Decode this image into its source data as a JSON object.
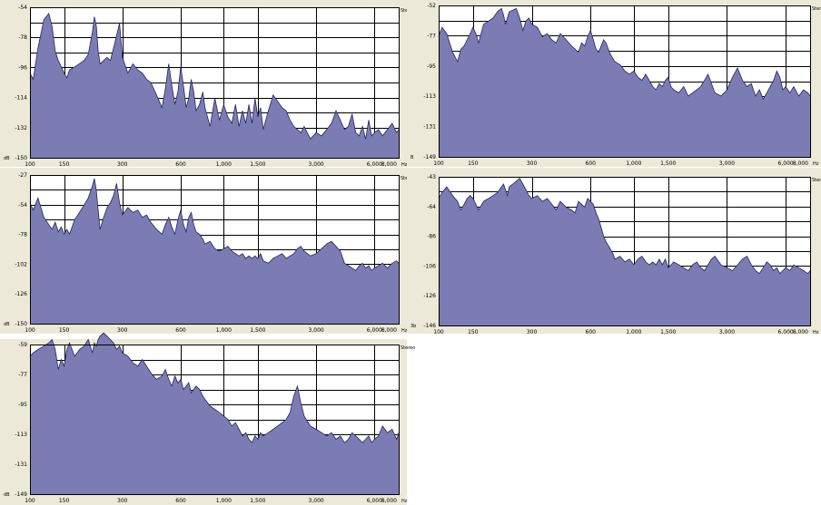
{
  "colors": {
    "fill": "#7c7cb4",
    "line": "#24245e",
    "grid": "#000000",
    "panel": "#ece9d8",
    "plot": "#ffffff"
  },
  "chart_data": [
    {
      "type": "area",
      "x_scale": "log",
      "xlim": [
        100,
        8000
      ],
      "ylim": [
        -150,
        -54
      ],
      "x_ticks": [
        "100",
        "150",
        "300",
        "600",
        "1,000",
        "1,500",
        "3,000",
        "6,000",
        "8,000"
      ],
      "x_unit": "Hz",
      "y_ticks": [
        "-54",
        "-78",
        "-96",
        "-114",
        "-132",
        "-150"
      ],
      "y_unit": "dB",
      "channel_label": "Stereo",
      "x": [
        100,
        104,
        110,
        118,
        125,
        130,
        135,
        140,
        145,
        150,
        155,
        160,
        170,
        180,
        190,
        200,
        210,
        215,
        220,
        225,
        230,
        240,
        250,
        260,
        270,
        280,
        290,
        300,
        320,
        340,
        360,
        380,
        400,
        420,
        450,
        480,
        500,
        520,
        540,
        560,
        580,
        600,
        620,
        640,
        660,
        680,
        700,
        720,
        750,
        780,
        800,
        850,
        900,
        950,
        1000,
        1050,
        1100,
        1150,
        1200,
        1250,
        1300,
        1350,
        1400,
        1450,
        1500,
        1550,
        1600,
        1700,
        1800,
        1900,
        2000,
        2100,
        2200,
        2300,
        2400,
        2500,
        2600,
        2800,
        3000,
        3200,
        3400,
        3600,
        3800,
        4000,
        4200,
        4400,
        4600,
        4800,
        5000,
        5200,
        5400,
        5600,
        5800,
        6000,
        6300,
        6600,
        7000,
        7400,
        7800,
        8000
      ],
      "y": [
        -96,
        -100,
        -80,
        -62,
        -58,
        -66,
        -82,
        -88,
        -92,
        -96,
        -99,
        -94,
        -92,
        -90,
        -88,
        -84,
        -70,
        -60,
        -66,
        -82,
        -90,
        -88,
        -86,
        -88,
        -80,
        -72,
        -64,
        -86,
        -96,
        -90,
        -94,
        -96,
        -100,
        -102,
        -110,
        -118,
        -106,
        -90,
        -104,
        -116,
        -108,
        -92,
        -104,
        -118,
        -112,
        -100,
        -108,
        -120,
        -116,
        -108,
        -118,
        -130,
        -112,
        -126,
        -116,
        -124,
        -128,
        -116,
        -130,
        -120,
        -128,
        -116,
        -128,
        -112,
        -124,
        -118,
        -132,
        -120,
        -110,
        -114,
        -118,
        -120,
        -126,
        -130,
        -132,
        -134,
        -130,
        -138,
        -134,
        -136,
        -132,
        -128,
        -120,
        -126,
        -132,
        -130,
        -122,
        -134,
        -136,
        -130,
        -138,
        -126,
        -136,
        -134,
        -132,
        -136,
        -132,
        -128,
        -134,
        -132
      ]
    },
    {
      "type": "area",
      "x_scale": "log",
      "xlim": [
        100,
        8000
      ],
      "ylim": [
        -149,
        -52
      ],
      "x_ticks": [
        "100",
        "150",
        "300",
        "600",
        "1,000",
        "1,500",
        "3,000",
        "6,000",
        "8,000"
      ],
      "x_unit": "Hz",
      "y_ticks": [
        "-52",
        "-77",
        "-95",
        "-113",
        "-131",
        "-149"
      ],
      "y_unit": "B",
      "channel_label": "Stereo",
      "x": [
        100,
        104,
        110,
        118,
        125,
        130,
        135,
        140,
        145,
        150,
        155,
        160,
        170,
        180,
        190,
        200,
        210,
        215,
        220,
        225,
        230,
        240,
        250,
        260,
        270,
        280,
        290,
        300,
        320,
        340,
        360,
        380,
        400,
        420,
        450,
        480,
        500,
        520,
        540,
        560,
        580,
        600,
        620,
        640,
        660,
        680,
        700,
        720,
        750,
        780,
        800,
        850,
        900,
        950,
        1000,
        1050,
        1100,
        1150,
        1200,
        1250,
        1300,
        1350,
        1400,
        1450,
        1500,
        1550,
        1600,
        1700,
        1800,
        1900,
        2000,
        2100,
        2200,
        2300,
        2400,
        2500,
        2600,
        2800,
        3000,
        3200,
        3400,
        3600,
        3800,
        4000,
        4200,
        4400,
        4600,
        4800,
        5000,
        5200,
        5400,
        5600,
        5800,
        6000,
        6300,
        6600,
        7000,
        7400,
        7800,
        8000
      ],
      "y": [
        -72,
        -66,
        -70,
        -82,
        -88,
        -80,
        -78,
        -74,
        -70,
        -66,
        -70,
        -76,
        -64,
        -62,
        -60,
        -56,
        -54,
        -58,
        -64,
        -60,
        -56,
        -55,
        -54,
        -60,
        -68,
        -62,
        -60,
        -64,
        -66,
        -72,
        -70,
        -74,
        -76,
        -70,
        -74,
        -78,
        -80,
        -82,
        -76,
        -78,
        -72,
        -68,
        -74,
        -80,
        -82,
        -78,
        -74,
        -76,
        -82,
        -86,
        -88,
        -90,
        -94,
        -96,
        -94,
        -98,
        -100,
        -96,
        -100,
        -104,
        -106,
        -102,
        -104,
        -100,
        -98,
        -104,
        -106,
        -108,
        -104,
        -110,
        -108,
        -106,
        -104,
        -100,
        -96,
        -102,
        -108,
        -110,
        -106,
        -98,
        -92,
        -100,
        -104,
        -102,
        -110,
        -106,
        -112,
        -108,
        -104,
        -100,
        -94,
        -98,
        -106,
        -104,
        -108,
        -104,
        -110,
        -106,
        -108,
        -110
      ]
    },
    {
      "type": "area",
      "x_scale": "log",
      "xlim": [
        100,
        8000
      ],
      "ylim": [
        -150,
        -27
      ],
      "x_ticks": [
        "100",
        "150",
        "300",
        "600",
        "1,000",
        "1,500",
        "3,000",
        "6,000",
        "8,000"
      ],
      "x_unit": "Hz",
      "y_ticks": [
        "-27",
        "-54",
        "-78",
        "-102",
        "-126",
        "-150"
      ],
      "y_unit": "dB",
      "channel_label": "Stereo",
      "x": [
        100,
        104,
        110,
        118,
        125,
        130,
        135,
        140,
        145,
        150,
        155,
        160,
        170,
        180,
        190,
        200,
        210,
        215,
        220,
        225,
        230,
        240,
        250,
        260,
        270,
        280,
        290,
        300,
        320,
        340,
        360,
        380,
        400,
        420,
        450,
        480,
        500,
        520,
        540,
        560,
        580,
        600,
        620,
        640,
        660,
        680,
        700,
        720,
        750,
        780,
        800,
        850,
        900,
        950,
        1000,
        1050,
        1100,
        1150,
        1200,
        1250,
        1300,
        1350,
        1400,
        1450,
        1500,
        1550,
        1600,
        1700,
        1800,
        1900,
        2000,
        2100,
        2200,
        2300,
        2400,
        2500,
        2600,
        2800,
        3000,
        3200,
        3400,
        3600,
        3800,
        4000,
        4200,
        4400,
        4600,
        4800,
        5000,
        5200,
        5400,
        5600,
        5800,
        6000,
        6300,
        6600,
        7000,
        7400,
        7800,
        8000
      ],
      "y": [
        -50,
        -56,
        -46,
        -62,
        -68,
        -72,
        -66,
        -74,
        -70,
        -76,
        -72,
        -76,
        -64,
        -58,
        -52,
        -46,
        -36,
        -30,
        -40,
        -56,
        -72,
        -62,
        -54,
        -50,
        -44,
        -34,
        -50,
        -60,
        -54,
        -58,
        -56,
        -62,
        -60,
        -66,
        -72,
        -76,
        -68,
        -62,
        -70,
        -76,
        -64,
        -56,
        -68,
        -74,
        -62,
        -58,
        -68,
        -74,
        -76,
        -80,
        -84,
        -82,
        -88,
        -90,
        -88,
        -86,
        -90,
        -92,
        -94,
        -92,
        -96,
        -94,
        -96,
        -94,
        -96,
        -92,
        -98,
        -100,
        -96,
        -94,
        -92,
        -96,
        -94,
        -92,
        -88,
        -86,
        -90,
        -94,
        -92,
        -88,
        -84,
        -82,
        -86,
        -90,
        -100,
        -102,
        -104,
        -106,
        -102,
        -100,
        -104,
        -102,
        -106,
        -104,
        -102,
        -100,
        -104,
        -100,
        -98,
        -100
      ]
    },
    {
      "type": "area",
      "x_scale": "log",
      "xlim": [
        100,
        8000
      ],
      "ylim": [
        -146,
        -43
      ],
      "x_ticks": [
        "100",
        "150",
        "300",
        "600",
        "1,000",
        "1,500",
        "3,000",
        "6,000",
        "8,000"
      ],
      "x_unit": "Hz",
      "y_ticks": [
        "-43",
        "-64",
        "-86",
        "-106",
        "-126",
        "-146"
      ],
      "y_unit": "3b",
      "channel_label": "Stereo",
      "x": [
        100,
        104,
        110,
        118,
        125,
        130,
        135,
        140,
        145,
        150,
        155,
        160,
        170,
        180,
        190,
        200,
        210,
        215,
        220,
        225,
        230,
        240,
        250,
        260,
        270,
        280,
        290,
        300,
        320,
        340,
        360,
        380,
        400,
        420,
        450,
        480,
        500,
        520,
        540,
        560,
        580,
        600,
        620,
        640,
        660,
        680,
        700,
        720,
        750,
        780,
        800,
        850,
        900,
        950,
        1000,
        1050,
        1100,
        1150,
        1200,
        1250,
        1300,
        1350,
        1400,
        1450,
        1500,
        1550,
        1600,
        1700,
        1800,
        1900,
        2000,
        2100,
        2200,
        2300,
        2400,
        2500,
        2600,
        2800,
        3000,
        3200,
        3400,
        3600,
        3800,
        4000,
        4200,
        4400,
        4600,
        4800,
        5000,
        5200,
        5400,
        5600,
        5800,
        6000,
        6300,
        6600,
        7000,
        7400,
        7800,
        8000
      ],
      "y": [
        -58,
        -54,
        -50,
        -56,
        -60,
        -66,
        -62,
        -58,
        -56,
        -58,
        -62,
        -66,
        -60,
        -58,
        -56,
        -54,
        -50,
        -48,
        -52,
        -56,
        -50,
        -48,
        -46,
        -44,
        -48,
        -52,
        -56,
        -58,
        -56,
        -60,
        -58,
        -62,
        -66,
        -60,
        -64,
        -66,
        -68,
        -60,
        -62,
        -64,
        -58,
        -60,
        -62,
        -68,
        -72,
        -78,
        -84,
        -88,
        -92,
        -96,
        -100,
        -98,
        -102,
        -100,
        -104,
        -100,
        -98,
        -102,
        -104,
        -102,
        -104,
        -100,
        -104,
        -100,
        -106,
        -104,
        -102,
        -104,
        -106,
        -108,
        -104,
        -102,
        -106,
        -108,
        -104,
        -100,
        -98,
        -104,
        -106,
        -108,
        -104,
        -100,
        -98,
        -104,
        -108,
        -110,
        -106,
        -102,
        -104,
        -108,
        -106,
        -110,
        -108,
        -106,
        -108,
        -104,
        -106,
        -108,
        -110,
        -108
      ]
    },
    {
      "type": "area",
      "x_scale": "log",
      "xlim": [
        100,
        8000
      ],
      "ylim": [
        -149,
        -59
      ],
      "x_ticks": [
        "100",
        "150",
        "300",
        "600",
        "1,000",
        "1,500",
        "3,000",
        "6,000",
        "8,000"
      ],
      "x_unit": "Hz",
      "y_ticks": [
        "-59",
        "-77",
        "-95",
        "-113",
        "-131",
        "-149"
      ],
      "y_unit": "dB",
      "channel_label": "Stereo",
      "x": [
        100,
        104,
        110,
        118,
        125,
        130,
        135,
        140,
        145,
        150,
        155,
        160,
        170,
        180,
        190,
        200,
        210,
        215,
        220,
        225,
        230,
        240,
        250,
        260,
        270,
        280,
        290,
        300,
        320,
        340,
        360,
        380,
        400,
        420,
        450,
        480,
        500,
        520,
        540,
        560,
        580,
        600,
        620,
        640,
        660,
        680,
        700,
        720,
        750,
        780,
        800,
        850,
        900,
        950,
        1000,
        1050,
        1100,
        1150,
        1200,
        1250,
        1300,
        1350,
        1400,
        1450,
        1500,
        1550,
        1600,
        1700,
        1800,
        1900,
        2000,
        2100,
        2200,
        2300,
        2400,
        2500,
        2600,
        2800,
        3000,
        3200,
        3400,
        3600,
        3800,
        4000,
        4200,
        4400,
        4600,
        4800,
        5000,
        5200,
        5400,
        5600,
        5800,
        6000,
        6300,
        6600,
        7000,
        7400,
        7800,
        8000
      ],
      "y": [
        -66,
        -64,
        -62,
        -60,
        -58,
        -56,
        -62,
        -74,
        -68,
        -72,
        -62,
        -58,
        -66,
        -62,
        -60,
        -56,
        -64,
        -58,
        -60,
        -56,
        -54,
        -52,
        -54,
        -56,
        -58,
        -62,
        -60,
        -64,
        -66,
        -70,
        -72,
        -68,
        -72,
        -76,
        -80,
        -78,
        -74,
        -80,
        -84,
        -78,
        -82,
        -80,
        -86,
        -84,
        -82,
        -88,
        -86,
        -84,
        -86,
        -90,
        -92,
        -96,
        -98,
        -100,
        -102,
        -104,
        -108,
        -106,
        -110,
        -114,
        -112,
        -116,
        -118,
        -114,
        -116,
        -112,
        -114,
        -112,
        -110,
        -108,
        -106,
        -104,
        -100,
        -90,
        -84,
        -94,
        -102,
        -108,
        -110,
        -112,
        -114,
        -112,
        -116,
        -114,
        -118,
        -116,
        -112,
        -114,
        -116,
        -118,
        -116,
        -114,
        -118,
        -116,
        -114,
        -108,
        -112,
        -110,
        -116,
        -112
      ]
    }
  ]
}
